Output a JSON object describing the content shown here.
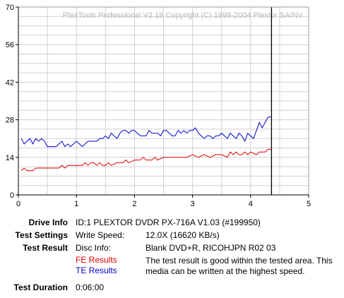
{
  "chart_data": {
    "type": "line",
    "watermark": "PlexTools Professional V2.18 Copyright (C) 1999-2004 Plextor SA/NV",
    "xlim": [
      0,
      5
    ],
    "ylim": [
      0,
      70
    ],
    "x_ticks": [
      0,
      1,
      2,
      3,
      4,
      5
    ],
    "y_ticks": [
      0,
      14,
      28,
      42,
      56,
      70
    ],
    "grid": true,
    "end_marker_x": 4.36,
    "series": [
      {
        "name": "TE Results",
        "color": "#0000cc",
        "points": [
          [
            0.05,
            21
          ],
          [
            0.1,
            19
          ],
          [
            0.15,
            20
          ],
          [
            0.2,
            21
          ],
          [
            0.25,
            19
          ],
          [
            0.3,
            21
          ],
          [
            0.35,
            20
          ],
          [
            0.4,
            21
          ],
          [
            0.45,
            20
          ],
          [
            0.5,
            18
          ],
          [
            0.6,
            18
          ],
          [
            0.65,
            18
          ],
          [
            0.7,
            19
          ],
          [
            0.75,
            20
          ],
          [
            0.8,
            18
          ],
          [
            0.85,
            19
          ],
          [
            0.9,
            18
          ],
          [
            0.95,
            19
          ],
          [
            1.0,
            20
          ],
          [
            1.05,
            19
          ],
          [
            1.1,
            18
          ],
          [
            1.15,
            19
          ],
          [
            1.2,
            20
          ],
          [
            1.3,
            20
          ],
          [
            1.35,
            20
          ],
          [
            1.4,
            21
          ],
          [
            1.45,
            21
          ],
          [
            1.5,
            22
          ],
          [
            1.55,
            21
          ],
          [
            1.6,
            23
          ],
          [
            1.65,
            22
          ],
          [
            1.7,
            21
          ],
          [
            1.75,
            23
          ],
          [
            1.8,
            24
          ],
          [
            1.85,
            24
          ],
          [
            1.9,
            23
          ],
          [
            1.95,
            24
          ],
          [
            2.0,
            24
          ],
          [
            2.05,
            23
          ],
          [
            2.1,
            22
          ],
          [
            2.15,
            22
          ],
          [
            2.2,
            22
          ],
          [
            2.25,
            24
          ],
          [
            2.3,
            23
          ],
          [
            2.35,
            23
          ],
          [
            2.4,
            23
          ],
          [
            2.45,
            22
          ],
          [
            2.5,
            24
          ],
          [
            2.55,
            24
          ],
          [
            2.6,
            23
          ],
          [
            2.65,
            22
          ],
          [
            2.7,
            22
          ],
          [
            2.75,
            24
          ],
          [
            2.8,
            23
          ],
          [
            2.85,
            24
          ],
          [
            2.9,
            23
          ],
          [
            2.95,
            24
          ],
          [
            3.0,
            24
          ],
          [
            3.05,
            25
          ],
          [
            3.1,
            23
          ],
          [
            3.15,
            22
          ],
          [
            3.2,
            21
          ],
          [
            3.25,
            22
          ],
          [
            3.3,
            22
          ],
          [
            3.35,
            21
          ],
          [
            3.4,
            22
          ],
          [
            3.45,
            22
          ],
          [
            3.5,
            23
          ],
          [
            3.55,
            22
          ],
          [
            3.6,
            21
          ],
          [
            3.65,
            23
          ],
          [
            3.7,
            22
          ],
          [
            3.75,
            21
          ],
          [
            3.8,
            23
          ],
          [
            3.85,
            22
          ],
          [
            3.9,
            20
          ],
          [
            3.95,
            23
          ],
          [
            4.0,
            22
          ],
          [
            4.05,
            21
          ],
          [
            4.1,
            24
          ],
          [
            4.15,
            27
          ],
          [
            4.2,
            25
          ],
          [
            4.25,
            27
          ],
          [
            4.3,
            29
          ],
          [
            4.35,
            29
          ]
        ]
      },
      {
        "name": "FE Results",
        "color": "#e00000",
        "points": [
          [
            0.05,
            9
          ],
          [
            0.1,
            10
          ],
          [
            0.15,
            9
          ],
          [
            0.2,
            9
          ],
          [
            0.25,
            9
          ],
          [
            0.3,
            10
          ],
          [
            0.4,
            10
          ],
          [
            0.5,
            10
          ],
          [
            0.6,
            10
          ],
          [
            0.7,
            10
          ],
          [
            0.75,
            11
          ],
          [
            0.8,
            10
          ],
          [
            0.85,
            11
          ],
          [
            0.9,
            11
          ],
          [
            1.0,
            11
          ],
          [
            1.1,
            11
          ],
          [
            1.15,
            12
          ],
          [
            1.2,
            11
          ],
          [
            1.25,
            12
          ],
          [
            1.3,
            12
          ],
          [
            1.35,
            11
          ],
          [
            1.4,
            12
          ],
          [
            1.45,
            11
          ],
          [
            1.5,
            11
          ],
          [
            1.55,
            12
          ],
          [
            1.6,
            11
          ],
          [
            1.7,
            12
          ],
          [
            1.8,
            12
          ],
          [
            1.85,
            13
          ],
          [
            1.9,
            12
          ],
          [
            2.0,
            13
          ],
          [
            2.05,
            13
          ],
          [
            2.1,
            13
          ],
          [
            2.15,
            14
          ],
          [
            2.2,
            13
          ],
          [
            2.3,
            13
          ],
          [
            2.35,
            14
          ],
          [
            2.4,
            13
          ],
          [
            2.5,
            14
          ],
          [
            2.6,
            14
          ],
          [
            2.7,
            14
          ],
          [
            2.8,
            14
          ],
          [
            2.9,
            14
          ],
          [
            3.0,
            15
          ],
          [
            3.1,
            14
          ],
          [
            3.2,
            15
          ],
          [
            3.3,
            14
          ],
          [
            3.4,
            15
          ],
          [
            3.5,
            15
          ],
          [
            3.6,
            14
          ],
          [
            3.65,
            16
          ],
          [
            3.7,
            15
          ],
          [
            3.75,
            16
          ],
          [
            3.8,
            15
          ],
          [
            3.85,
            15
          ],
          [
            3.9,
            16
          ],
          [
            3.95,
            15
          ],
          [
            4.0,
            16
          ],
          [
            4.1,
            15
          ],
          [
            4.15,
            16
          ],
          [
            4.2,
            16
          ],
          [
            4.25,
            16
          ],
          [
            4.3,
            17
          ],
          [
            4.35,
            17
          ]
        ]
      }
    ]
  },
  "info": {
    "drive_label": "Drive Info",
    "drive_value": "ID:1 PLEXTOR DVDR PX-716A V1.03 (#199950)",
    "settings_label": "Test Settings",
    "settings_key": "Write Speed:",
    "settings_value": "12.0X (16620 KB/s)",
    "result_label": "Test Result",
    "result_key": "Disc Info:",
    "result_value": "Blank DVD+R, RICOHJPN R02 03",
    "fe_label": "FE Results",
    "te_label": "TE Results",
    "message": "The test result is good within the tested area. This media can be written at the highest speed.",
    "duration_label": "Test Duration",
    "duration_value": "0:06:00"
  }
}
